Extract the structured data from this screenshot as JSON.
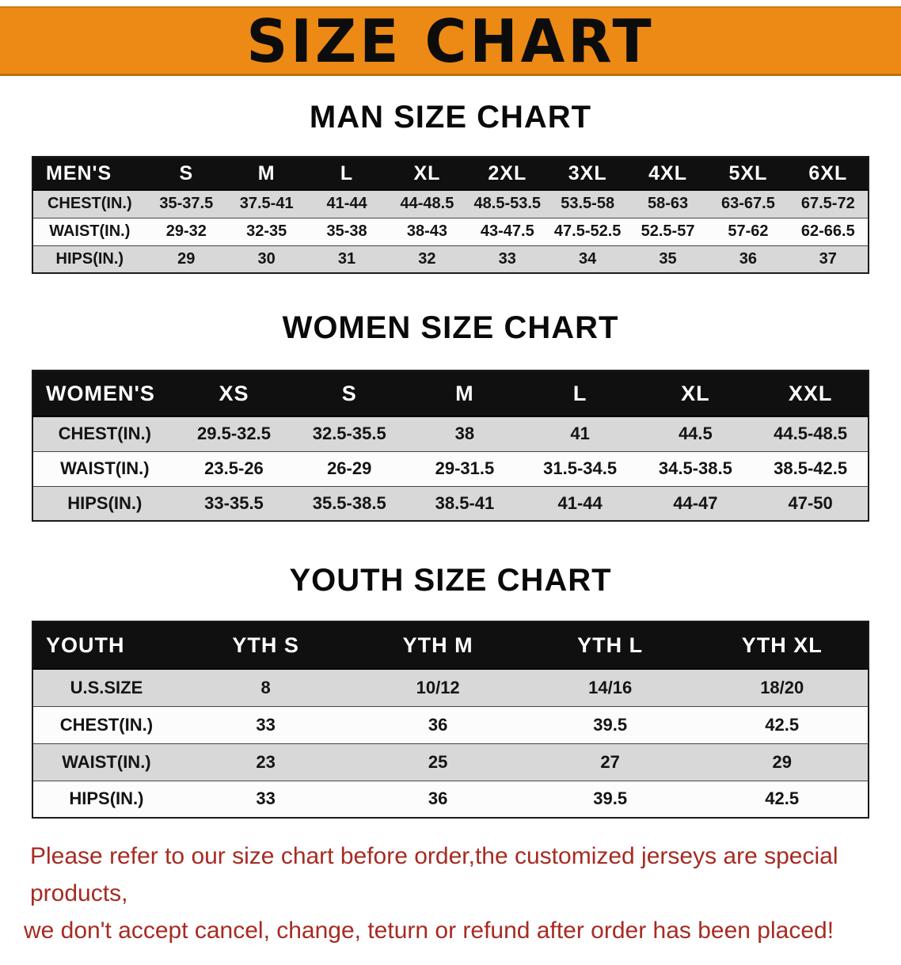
{
  "banner": {
    "title": "SIZE CHART"
  },
  "men": {
    "heading": "MAN SIZE CHART",
    "table": {
      "header": [
        "MEN'S",
        "S",
        "M",
        "L",
        "XL",
        "2XL",
        "3XL",
        "4XL",
        "5XL",
        "6XL"
      ],
      "rows": [
        [
          "CHEST(IN.)",
          "35-37.5",
          "37.5-41",
          "41-44",
          "44-48.5",
          "48.5-53.5",
          "53.5-58",
          "58-63",
          "63-67.5",
          "67.5-72"
        ],
        [
          "WAIST(IN.)",
          "29-32",
          "32-35",
          "35-38",
          "38-43",
          "43-47.5",
          "47.5-52.5",
          "52.5-57",
          "57-62",
          "62-66.5"
        ],
        [
          "HIPS(IN.)",
          "29",
          "30",
          "31",
          "32",
          "33",
          "34",
          "35",
          "36",
          "37"
        ]
      ]
    }
  },
  "women": {
    "heading": "WOMEN SIZE CHART",
    "table": {
      "header": [
        "WOMEN'S",
        "XS",
        "S",
        "M",
        "L",
        "XL",
        "XXL"
      ],
      "rows": [
        [
          "CHEST(IN.)",
          "29.5-32.5",
          "32.5-35.5",
          "38",
          "41",
          "44.5",
          "44.5-48.5"
        ],
        [
          "WAIST(IN.)",
          "23.5-26",
          "26-29",
          "29-31.5",
          "31.5-34.5",
          "34.5-38.5",
          "38.5-42.5"
        ],
        [
          "HIPS(IN.)",
          "33-35.5",
          "35.5-38.5",
          "38.5-41",
          "41-44",
          "44-47",
          "47-50"
        ]
      ]
    }
  },
  "youth": {
    "heading": "YOUTH SIZE CHART",
    "table": {
      "header": [
        "YOUTH",
        "YTH S",
        "YTH M",
        "YTH L",
        "YTH XL"
      ],
      "rows": [
        [
          "U.S.SIZE",
          "8",
          "10/12",
          "14/16",
          "18/20"
        ],
        [
          "CHEST(IN.)",
          "33",
          "36",
          "39.5",
          "42.5"
        ],
        [
          "WAIST(IN.)",
          "23",
          "25",
          "27",
          "29"
        ],
        [
          "HIPS(IN.)",
          "33",
          "36",
          "39.5",
          "42.5"
        ]
      ]
    }
  },
  "disclaimer": {
    "line1": "Please refer to our size chart before order,the customized jerseys are special products,",
    "line2": "we don't accept cancel, change, teturn or refund after order has been placed!"
  },
  "colors": {
    "banner_bg": "#ec8a15",
    "header_bg": "#101010",
    "row_alt": "#d8d8d8",
    "disclaimer_red": "#a62b22"
  }
}
